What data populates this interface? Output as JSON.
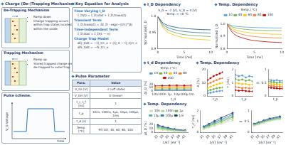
{
  "left": {
    "title": "Charge (De-)Trapping Mechanism",
    "panels": [
      {
        "title": "De-Trapping Mechanism",
        "bullets": [
          "Ramp down",
          "Charge trapping occurs within trap states located within the oxide."
        ]
      },
      {
        "title": "Trapping Mechanism",
        "bullets": [
          "Ramp up",
          "Stored trapped charge are de-trapped to outer trap."
        ]
      }
    ],
    "pulse": {
      "title": "Pulse scheme.",
      "y_label": "V_G Voltage",
      "x_label": "Time"
    }
  },
  "middle": {
    "title": "Key Equation for Analysis",
    "equations": [
      {
        "heading": "Time Varying I_D",
        "lines": [
          "I_D(t) = I_D,stat + I_D,trans(t)"
        ]
      },
      {
        "heading": "Transient Term",
        "lines": [
          "I_D,trans(t) = ΔI_D · exp(−(t/τ)^β)"
        ]
      },
      {
        "heading": "Time-Independent Term",
        "lines": [
          "I_D,stat = I_D(t → ∞)"
        ]
      },
      {
        "heading": "Charge Trap Model",
        "lines": [
          "dQ_t/dt = −Q_t/τ_e + (Q_0 − Q_t)/τ_c",
          "dN_t/dt = −N_t/τ_e"
        ]
      }
    ],
    "table": {
      "title": "Pulse Parameter",
      "header": [
        "Para.",
        "Value"
      ],
      "rows": [
        [
          "V_GL [V]",
          "-2 (off state)"
        ],
        [
          "V_GH [V]",
          "0 (linear)"
        ],
        [
          "t_r, t_f [ns]",
          "1"
        ],
        [
          "t_p",
          "10ns, 100ns, 1μs, 10μs, 100μs, 1ms"
        ],
        [
          "t_d [s]",
          "1"
        ],
        [
          "Temp. [°C]",
          "RT(10), 40, 60, 80, 100"
        ]
      ]
    }
  },
  "chart_data": [
    {
      "type": "line",
      "title": "I_D Dependency",
      "annotation": [
        "V_G = -2 [V], V_D = 4 [V]",
        "Temp. = 10 °C"
      ],
      "x_label": "Time [ms]",
      "y_label": "Normalized I_D",
      "x": [
        0,
        1,
        2,
        4,
        6,
        8,
        10
      ],
      "xlim": [
        0,
        10
      ],
      "xticks": [
        0,
        5,
        10
      ],
      "ylim": [
        0.9,
        1.0
      ],
      "yticks": [
        0.9,
        0.95,
        {
          "value": 1,
          "label": "1.0"
        }
      ],
      "grid": false,
      "marker": "none",
      "line_style": "solid",
      "series": [
        {
          "color": "#1f4e79",
          "values": [
            1,
            0.98,
            0.972,
            0.965,
            0.962,
            0.96,
            0.959
          ]
        },
        {
          "color": "#2e75b6",
          "values": [
            1,
            0.975,
            0.965,
            0.956,
            0.952,
            0.95,
            0.949
          ]
        },
        {
          "color": "#70ad47",
          "values": [
            1,
            0.97,
            0.958,
            0.947,
            0.942,
            0.94,
            0.938
          ]
        },
        {
          "color": "#ffc000",
          "values": [
            1,
            0.965,
            0.95,
            0.938,
            0.932,
            0.929,
            0.927
          ]
        }
      ]
    },
    {
      "type": "line",
      "title": "Temp. Dependency",
      "legend": "top",
      "legend_title": "Temp. [°C]",
      "x_label": "Time [ms]",
      "y_label": "Normalized I_D",
      "x": [
        0,
        1,
        2,
        4,
        6,
        8,
        10
      ],
      "xlim": [
        0,
        10
      ],
      "xticks": [
        0,
        5,
        10
      ],
      "ylim": [
        0.8,
        1.0
      ],
      "yticks": [
        0.8,
        0.9,
        {
          "value": 1,
          "label": "1.0"
        }
      ],
      "grid": false,
      "marker": "none",
      "line_style": "solid",
      "series": [
        {
          "name": "10",
          "color": "#5b9bd5",
          "values": [
            1,
            0.985,
            0.978,
            0.972,
            0.969,
            0.967,
            0.966
          ]
        },
        {
          "name": "40",
          "color": "#70ad47",
          "values": [
            1,
            0.975,
            0.963,
            0.953,
            0.948,
            0.946,
            0.944
          ]
        },
        {
          "name": "60",
          "color": "#ffc000",
          "values": [
            1,
            0.962,
            0.945,
            0.929,
            0.922,
            0.918,
            0.916
          ]
        },
        {
          "name": "80",
          "color": "#ed7d31",
          "values": [
            1,
            0.948,
            0.925,
            0.904,
            0.894,
            0.889,
            0.886
          ]
        },
        {
          "name": "100",
          "color": "#c00000",
          "values": [
            1,
            0.93,
            0.9,
            0.873,
            0.861,
            0.854,
            0.85
          ]
        }
      ]
    },
    {
      "type": "line",
      "title": "t_d Dependency",
      "legend": "top",
      "legend_title": "Temp. [°C]",
      "x_label": "t_d",
      "y_label": "ΔI_D [%]",
      "categories": [
        "10n",
        "100n",
        "1μ",
        "10μ",
        "100μ",
        "1m"
      ],
      "ylim": [
        0,
        20
      ],
      "yticks": [
        0,
        10,
        20
      ],
      "grid": false,
      "marker": "circle",
      "line_style": "solid",
      "series": [
        {
          "name": "10",
          "color": "#5b9bd5",
          "values": [
            3,
            3.2,
            3.5,
            3.4,
            3.6,
            3.5
          ]
        },
        {
          "name": "40",
          "color": "#70ad47",
          "values": [
            5,
            5.3,
            5.6,
            5.8,
            5.5,
            5.7
          ]
        },
        {
          "name": "60",
          "color": "#ffc000",
          "values": [
            8,
            8.4,
            8.8,
            9,
            8.7,
            9.1
          ]
        },
        {
          "name": "80",
          "color": "#ed7d31",
          "values": [
            11,
            11.5,
            12,
            12.3,
            11.8,
            12.4
          ]
        },
        {
          "name": "100",
          "color": "#c00000",
          "values": [
            15,
            15.6,
            16.2,
            16.5,
            16,
            16.8
          ]
        }
      ]
    },
    {
      "type": "line",
      "title": "Temp. Dependency",
      "tick_labels": "y",
      "x_label": "t_p",
      "y_label": "A [%]",
      "categories": [
        "10n",
        "100n",
        "1μ",
        "10μ",
        "100μ",
        "1m"
      ],
      "ylim": [
        0,
        20
      ],
      "yticks": [
        0,
        10,
        20
      ],
      "grid": false,
      "marker": "circle",
      "line_style": "solid",
      "series": [
        {
          "color": "#5b9bd5",
          "values": [
            2,
            2.5,
            3,
            3.5,
            3.8,
            4
          ]
        },
        {
          "color": "#70ad47",
          "values": [
            4,
            4.6,
            5.2,
            5.8,
            6.2,
            6.5
          ]
        },
        {
          "color": "#ffc000",
          "values": [
            6,
            7,
            8,
            8.8,
            9.5,
            10
          ]
        },
        {
          "color": "#ed7d31",
          "values": [
            9,
            10,
            11,
            12,
            13,
            13.5
          ]
        },
        {
          "color": "#c00000",
          "values": [
            12,
            13.5,
            15,
            16,
            17,
            18
          ]
        }
      ]
    },
    {
      "type": "line",
      "tick_labels": "y",
      "x_label": "t_p",
      "y_label": "τ [ms]",
      "categories": [
        "10n",
        "100n",
        "1μ",
        "10μ",
        "100μ",
        "1m"
      ],
      "ylim": [
        0,
        2
      ],
      "yticks": [
        0,
        1,
        2
      ],
      "grid": false,
      "marker": "circle",
      "line_style": "solid",
      "series": [
        {
          "color": "#5b9bd5",
          "values": [
            1.6,
            1.5,
            1.55,
            1.4,
            1.5,
            1.45
          ]
        },
        {
          "color": "#70ad47",
          "values": [
            1.3,
            1.2,
            1.25,
            1.15,
            1.2,
            1.1
          ]
        },
        {
          "color": "#ffc000",
          "values": [
            1,
            0.95,
            0.9,
            0.92,
            0.85,
            0.88
          ]
        },
        {
          "color": "#ed7d31",
          "values": [
            0.7,
            0.65,
            0.6,
            0.62,
            0.58,
            0.6
          ]
        },
        {
          "color": "#c00000",
          "values": [
            0.45,
            0.4,
            0.42,
            0.38,
            0.36,
            0.35
          ]
        }
      ]
    },
    {
      "type": "line",
      "tick_labels": "y",
      "x_label": "t_p",
      "y_label": "β",
      "categories": [
        "10n",
        "100n",
        "1μ",
        "10μ",
        "100μ",
        "1m"
      ],
      "ylim": [
        0,
        1
      ],
      "yticks": [
        0,
        0.5,
        1
      ],
      "grid": false,
      "marker": "circle",
      "line_style": "solid",
      "series": [
        {
          "color": "#5b9bd5",
          "values": [
            0.62,
            0.6,
            0.58,
            0.6,
            0.57,
            0.58
          ]
        },
        {
          "color": "#70ad47",
          "values": [
            0.55,
            0.53,
            0.52,
            0.5,
            0.51,
            0.5
          ]
        },
        {
          "color": "#ffc000",
          "values": [
            0.48,
            0.46,
            0.45,
            0.44,
            0.43,
            0.42
          ]
        },
        {
          "color": "#ed7d31",
          "values": [
            0.4,
            0.38,
            0.37,
            0.36,
            0.36,
            0.35
          ]
        },
        {
          "color": "#c00000",
          "values": [
            0.33,
            0.31,
            0.3,
            0.29,
            0.28,
            0.28
          ]
        }
      ]
    },
    {
      "type": "line",
      "title": "Temp. Dependency",
      "legend": "top",
      "x_label": "1/kT [eV⁻¹]",
      "y_label": "ΔI_D [%]",
      "x": [
        31.1,
        32.9,
        34.8,
        37.1,
        41.0
      ],
      "xlim": [
        30,
        42
      ],
      "xticks": [
        31,
        33,
        35,
        37,
        39,
        41
      ],
      "ylim": [
        0,
        20
      ],
      "yticks": [
        0,
        10,
        20
      ],
      "grid": false,
      "marker": "circle",
      "line_style": "solid",
      "series": [
        {
          "name": "10n",
          "color": "#c5e0b4",
          "values": [
            8,
            6,
            4.5,
            3,
            2
          ]
        },
        {
          "name": "100n",
          "color": "#a9d18e",
          "values": [
            10,
            7.5,
            5.5,
            4,
            2.5
          ]
        },
        {
          "name": "1μ",
          "color": "#70ad47",
          "values": [
            12,
            9,
            7,
            5,
            3
          ]
        },
        {
          "name": "10μ",
          "color": "#4ea8a0",
          "values": [
            14,
            11,
            8.5,
            6,
            3.5
          ]
        },
        {
          "name": "100μ",
          "color": "#2e75b6",
          "values": [
            16,
            12.5,
            9.5,
            7,
            4
          ]
        },
        {
          "name": "1m",
          "color": "#1f3864",
          "values": [
            18,
            14,
            11,
            8,
            5
          ]
        }
      ]
    },
    {
      "type": "line",
      "x_label": "1/kT [eV⁻¹]",
      "y_label": "τ_c [ms]",
      "x": [
        31.1,
        32.9,
        34.8,
        37.1,
        41.0
      ],
      "xlim": [
        30,
        42
      ],
      "xticks": [
        31,
        33,
        35,
        37,
        39,
        41
      ],
      "ylim": [
        0,
        2
      ],
      "yticks": [
        0,
        1,
        2
      ],
      "grid": false,
      "marker": "circle",
      "line_style": "solid",
      "series": [
        {
          "color": "#c5e0b4",
          "values": [
            0.3,
            0.45,
            0.6,
            0.8,
            1.1
          ]
        },
        {
          "color": "#a9d18e",
          "values": [
            0.35,
            0.5,
            0.7,
            0.9,
            1.25
          ]
        },
        {
          "color": "#70ad47",
          "values": [
            0.4,
            0.58,
            0.78,
            1,
            1.4
          ]
        },
        {
          "color": "#4ea8a0",
          "values": [
            0.45,
            0.65,
            0.85,
            1.1,
            1.5
          ]
        },
        {
          "color": "#2e75b6",
          "values": [
            0.5,
            0.7,
            0.95,
            1.2,
            1.65
          ]
        },
        {
          "color": "#1f3864",
          "values": [
            0.55,
            0.78,
            1.05,
            1.35,
            1.8
          ]
        }
      ]
    },
    {
      "type": "line",
      "x_label": "1/kT [eV⁻¹]",
      "y_label": "β",
      "x": [
        31.1,
        32.9,
        34.8,
        37.1,
        41.0
      ],
      "xlim": [
        30,
        42
      ],
      "xticks": [
        31,
        33,
        35,
        37,
        39,
        41
      ],
      "ylim": [
        0,
        1
      ],
      "yticks": [
        0,
        0.5,
        1
      ],
      "grid": false,
      "marker": "circle",
      "line_style": "solid",
      "series": [
        {
          "color": "#c5e0b4",
          "values": [
            0.3,
            0.36,
            0.44,
            0.52,
            0.6
          ]
        },
        {
          "color": "#a9d18e",
          "values": [
            0.32,
            0.38,
            0.46,
            0.54,
            0.62
          ]
        },
        {
          "color": "#70ad47",
          "values": [
            0.34,
            0.4,
            0.48,
            0.56,
            0.65
          ]
        },
        {
          "color": "#4ea8a0",
          "values": [
            0.36,
            0.43,
            0.5,
            0.58,
            0.68
          ]
        },
        {
          "color": "#2e75b6",
          "values": [
            0.38,
            0.45,
            0.53,
            0.61,
            0.71
          ]
        },
        {
          "color": "#1f3864",
          "values": [
            0.4,
            0.47,
            0.55,
            0.64,
            0.74
          ]
        }
      ]
    }
  ]
}
